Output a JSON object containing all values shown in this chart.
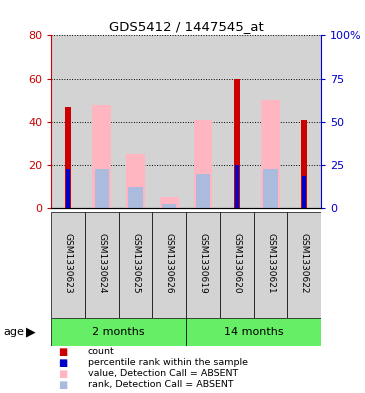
{
  "title": "GDS5412 / 1447545_at",
  "samples": [
    "GSM1330623",
    "GSM1330624",
    "GSM1330625",
    "GSM1330626",
    "GSM1330619",
    "GSM1330620",
    "GSM1330621",
    "GSM1330622"
  ],
  "count_red": [
    47,
    0,
    0,
    0,
    0,
    60,
    0,
    41
  ],
  "percentile_blue": [
    18,
    0,
    0,
    0,
    0,
    20,
    0,
    15
  ],
  "value_absent_pink": [
    0,
    48,
    25,
    5,
    41,
    0,
    50,
    0
  ],
  "rank_absent_lightblue": [
    0,
    18,
    10,
    2,
    16,
    0,
    18,
    0
  ],
  "ylim_left": [
    0,
    80
  ],
  "ylim_right": [
    0,
    100
  ],
  "yticks_left": [
    0,
    20,
    40,
    60,
    80
  ],
  "ytick_labels_right": [
    "0",
    "25",
    "50",
    "75",
    "100%"
  ],
  "group_labels": [
    "2 months",
    "14 months"
  ],
  "color_red": "#CC0000",
  "color_blue": "#0000CC",
  "color_pink": "#FFB6C1",
  "color_lightblue": "#AABBDD",
  "bg_gray": "#D3D3D3",
  "green_color": "#66EE66",
  "legend_items": [
    "count",
    "percentile rank within the sample",
    "value, Detection Call = ABSENT",
    "rank, Detection Call = ABSENT"
  ],
  "pink_bar_width": 0.55,
  "lightblue_bar_width": 0.42,
  "red_bar_width": 0.18,
  "blue_bar_width": 0.12
}
